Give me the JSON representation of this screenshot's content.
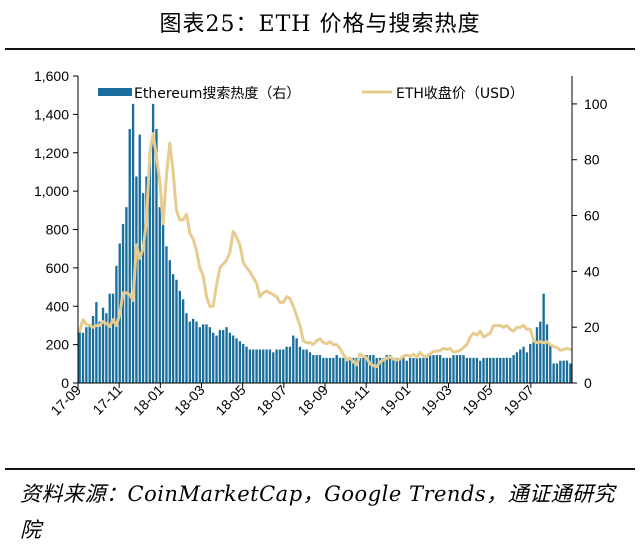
{
  "figure": {
    "title": "图表25：ETH 价格与搜索热度",
    "source": "资料来源：CoinMarketCap，Google Trends，通证通研究院"
  },
  "chart_data": {
    "type": "bar+line",
    "title": "图表25：ETH 价格与搜索热度",
    "x_tick_labels": [
      "17-09",
      "17-11",
      "18-01",
      "18-03",
      "18-05",
      "18-07",
      "18-09",
      "18-11",
      "19-01",
      "19-03",
      "19-05",
      "19-07"
    ],
    "y_left": {
      "ticks": [
        "0",
        "200",
        "400",
        "600",
        "800",
        "1,000",
        "1,200",
        "1,400",
        "1,600"
      ],
      "ylim": [
        0,
        1600
      ]
    },
    "y_right": {
      "ticks": [
        "0",
        "20",
        "40",
        "60",
        "80",
        "100"
      ],
      "ylim": [
        0,
        110
      ]
    },
    "legend_placement": "top",
    "grid": false,
    "series": [
      {
        "name": "Ethereum搜索热度（右）",
        "type": "bar",
        "axis": "right",
        "color": "#1a6e9c",
        "frequency": "weekly",
        "start": "2017-09",
        "values": [
          19,
          18,
          20,
          21,
          24,
          29,
          22,
          27,
          25,
          32,
          32,
          42,
          50,
          57,
          63,
          91,
          100,
          74,
          89,
          68,
          74,
          79,
          100,
          91,
          63,
          61,
          49,
          44,
          39,
          37,
          33,
          30,
          25,
          22,
          23,
          22,
          20,
          21,
          21,
          20,
          18,
          17,
          19,
          19,
          20,
          18,
          17,
          16,
          15,
          14,
          13,
          12,
          12,
          12,
          12,
          12,
          12,
          12,
          11,
          12,
          12,
          12,
          13,
          13,
          17,
          16,
          13,
          12,
          12,
          11,
          10,
          10,
          10,
          9,
          9,
          9,
          9,
          10,
          9,
          9,
          9,
          9,
          9,
          9,
          9,
          9,
          10,
          10,
          10,
          9,
          9,
          9,
          10,
          10,
          9,
          9,
          9,
          9,
          8,
          9,
          9,
          9,
          9,
          9,
          9,
          10,
          10,
          10,
          10,
          9,
          9,
          9,
          10,
          10,
          10,
          10,
          9,
          9,
          9,
          9,
          8,
          9,
          9,
          9,
          9,
          9,
          9,
          9,
          9,
          9,
          10,
          11,
          12,
          13,
          11,
          14,
          16,
          20,
          22,
          32,
          21,
          14,
          7,
          7,
          8,
          8,
          8,
          7
        ]
      },
      {
        "name": "ETH收盘价（USD）",
        "type": "line",
        "axis": "left",
        "color": "#e6cc8e",
        "frequency": "weekly",
        "start": "2017-09",
        "values": [
          270,
          330,
          305,
          300,
          290,
          300,
          300,
          320,
          310,
          295,
          330,
          300,
          360,
          470,
          470,
          460,
          430,
          720,
          650,
          700,
          840,
          1200,
          1300,
          1180,
          1050,
          830,
          1080,
          1250,
          1100,
          900,
          850,
          850,
          880,
          780,
          750,
          690,
          600,
          560,
          450,
          400,
          400,
          510,
          600,
          620,
          640,
          680,
          790,
          760,
          720,
          630,
          600,
          580,
          550,
          520,
          450,
          470,
          480,
          470,
          460,
          450,
          420,
          420,
          450,
          440,
          400,
          350,
          300,
          220,
          210,
          210,
          200,
          220,
          230,
          210,
          205,
          215,
          200,
          200,
          180,
          150,
          120,
          130,
          110,
          95,
          150,
          140,
          130,
          100,
          90,
          85,
          110,
          120,
          130,
          135,
          125,
          120,
          125,
          140,
          145,
          140,
          150,
          135,
          160,
          140,
          140,
          150,
          165,
          165,
          170,
          180,
          175,
          180,
          160,
          165,
          170,
          185,
          200,
          240,
          260,
          250,
          270,
          240,
          250,
          260,
          300,
          300,
          300,
          290,
          300,
          280,
          270,
          290,
          290,
          300,
          280,
          280,
          220,
          210,
          215,
          210,
          215,
          200,
          190,
          185,
          170,
          175,
          180,
          175
        ]
      }
    ]
  },
  "colors": {
    "bar": "#1a6e9c",
    "line": "#e6cc8e",
    "rule": "#111111"
  }
}
